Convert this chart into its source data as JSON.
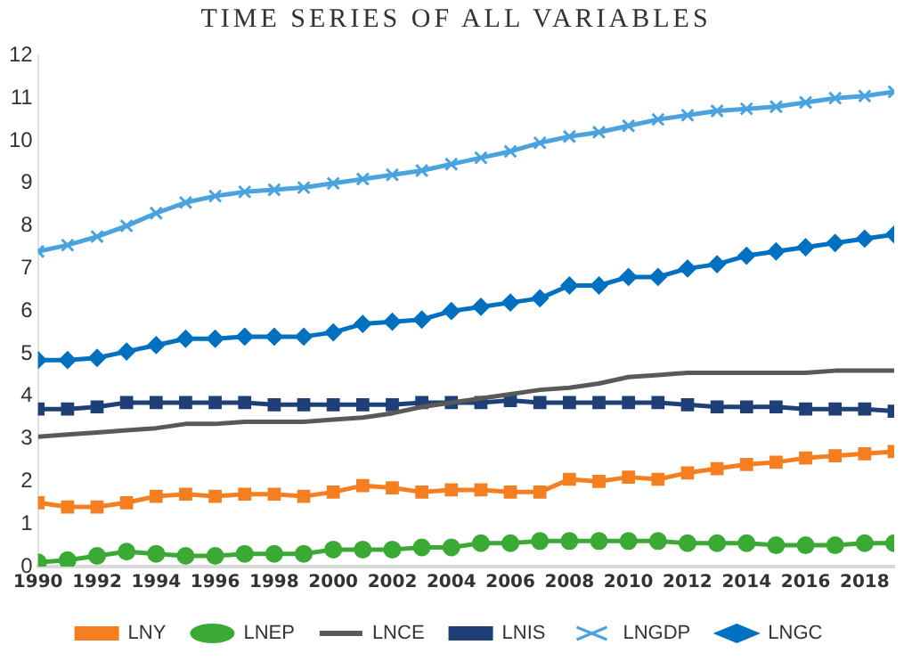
{
  "chart_data": {
    "type": "line",
    "title": "TIME SERIES OF ALL VARIABLES",
    "x": [
      1990,
      1991,
      1992,
      1993,
      1994,
      1995,
      1996,
      1997,
      1998,
      1999,
      2000,
      2001,
      2002,
      2003,
      2004,
      2005,
      2006,
      2007,
      2008,
      2009,
      2010,
      2011,
      2012,
      2013,
      2014,
      2015,
      2016,
      2017,
      2018,
      2019
    ],
    "xlim": [
      1990,
      2019
    ],
    "xticks": [
      1990,
      1992,
      1994,
      1996,
      1998,
      2000,
      2002,
      2004,
      2006,
      2008,
      2010,
      2012,
      2014,
      2016,
      2018
    ],
    "ylim": [
      0,
      12
    ],
    "yticks": [
      0,
      1,
      2,
      3,
      4,
      5,
      6,
      7,
      8,
      9,
      10,
      11,
      12
    ],
    "grid": false,
    "legend": "bottom",
    "series": [
      {
        "name": "LNY",
        "color": "#f57f20",
        "marker": "square",
        "values": [
          1.5,
          1.4,
          1.4,
          1.5,
          1.65,
          1.7,
          1.65,
          1.7,
          1.7,
          1.65,
          1.75,
          1.9,
          1.85,
          1.75,
          1.8,
          1.8,
          1.75,
          1.75,
          2.05,
          2.0,
          2.1,
          2.05,
          2.2,
          2.3,
          2.4,
          2.45,
          2.55,
          2.6,
          2.65,
          2.7
        ]
      },
      {
        "name": "LNEP",
        "color": "#3aaa35",
        "marker": "circle",
        "values": [
          0.1,
          0.15,
          0.25,
          0.35,
          0.3,
          0.25,
          0.25,
          0.3,
          0.3,
          0.3,
          0.4,
          0.4,
          0.4,
          0.45,
          0.45,
          0.55,
          0.55,
          0.6,
          0.6,
          0.6,
          0.6,
          0.6,
          0.55,
          0.55,
          0.55,
          0.5,
          0.5,
          0.5,
          0.55,
          0.55
        ]
      },
      {
        "name": "LNCE",
        "color": "#595959",
        "marker": "none",
        "values": [
          3.05,
          3.1,
          3.15,
          3.2,
          3.25,
          3.35,
          3.35,
          3.4,
          3.4,
          3.4,
          3.45,
          3.5,
          3.6,
          3.75,
          3.85,
          3.95,
          4.05,
          4.15,
          4.2,
          4.3,
          4.45,
          4.5,
          4.55,
          4.55,
          4.55,
          4.55,
          4.55,
          4.6,
          4.6,
          4.6
        ]
      },
      {
        "name": "LNIS",
        "color": "#1f3f77",
        "marker": "square",
        "values": [
          3.7,
          3.7,
          3.75,
          3.85,
          3.85,
          3.85,
          3.85,
          3.85,
          3.8,
          3.8,
          3.8,
          3.8,
          3.8,
          3.85,
          3.85,
          3.85,
          3.9,
          3.85,
          3.85,
          3.85,
          3.85,
          3.85,
          3.8,
          3.75,
          3.75,
          3.75,
          3.7,
          3.7,
          3.7,
          3.65
        ]
      },
      {
        "name": "LNGDP",
        "color": "#4aa3df",
        "marker": "cross",
        "values": [
          7.4,
          7.55,
          7.75,
          8.0,
          8.3,
          8.55,
          8.7,
          8.8,
          8.85,
          8.9,
          9.0,
          9.1,
          9.2,
          9.3,
          9.45,
          9.6,
          9.75,
          9.95,
          10.1,
          10.2,
          10.35,
          10.5,
          10.6,
          10.7,
          10.75,
          10.8,
          10.9,
          11.0,
          11.05,
          11.15
        ]
      },
      {
        "name": "LNGC",
        "color": "#0070c0",
        "marker": "diamond",
        "values": [
          4.85,
          4.85,
          4.9,
          5.05,
          5.2,
          5.35,
          5.35,
          5.4,
          5.4,
          5.4,
          5.5,
          5.7,
          5.75,
          5.8,
          6.0,
          6.1,
          6.2,
          6.3,
          6.6,
          6.6,
          6.8,
          6.8,
          7.0,
          7.1,
          7.3,
          7.4,
          7.5,
          7.6,
          7.7,
          7.8
        ]
      }
    ]
  }
}
